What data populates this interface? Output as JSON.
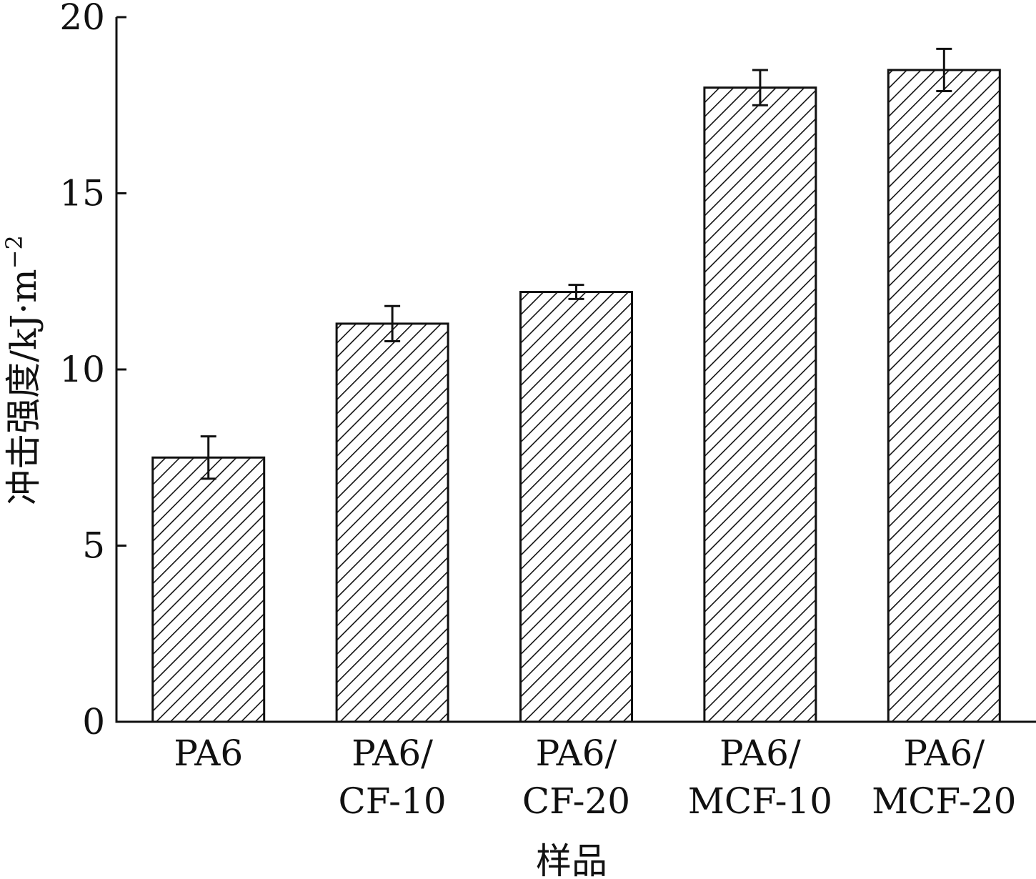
{
  "chart_data": {
    "type": "bar",
    "title": "",
    "xlabel": "样品",
    "ylabel": "冲击强度/kJ·m",
    "ylabel_superscript": "−2",
    "ylim": [
      0,
      20
    ],
    "yticks": [
      "0",
      "5",
      "10",
      "15",
      "20"
    ],
    "grid": false,
    "legend": "none",
    "bar_fill": "diagonal hatch",
    "colors": {
      "bar_stroke": "#111111",
      "bar_fill": "#ffffff",
      "hatch": "#111111",
      "axis": "#111111"
    },
    "categories": [
      {
        "line1": "PA6",
        "line2": ""
      },
      {
        "line1": "PA6/",
        "line2": "CF-10"
      },
      {
        "line1": "PA6/",
        "line2": "CF-20"
      },
      {
        "line1": "PA6/",
        "line2": "MCF-10"
      },
      {
        "line1": "PA6/",
        "line2": "MCF-20"
      }
    ],
    "values": [
      7.5,
      11.3,
      12.2,
      18.0,
      18.5
    ],
    "errors": [
      0.6,
      0.5,
      0.2,
      0.5,
      0.6
    ]
  }
}
